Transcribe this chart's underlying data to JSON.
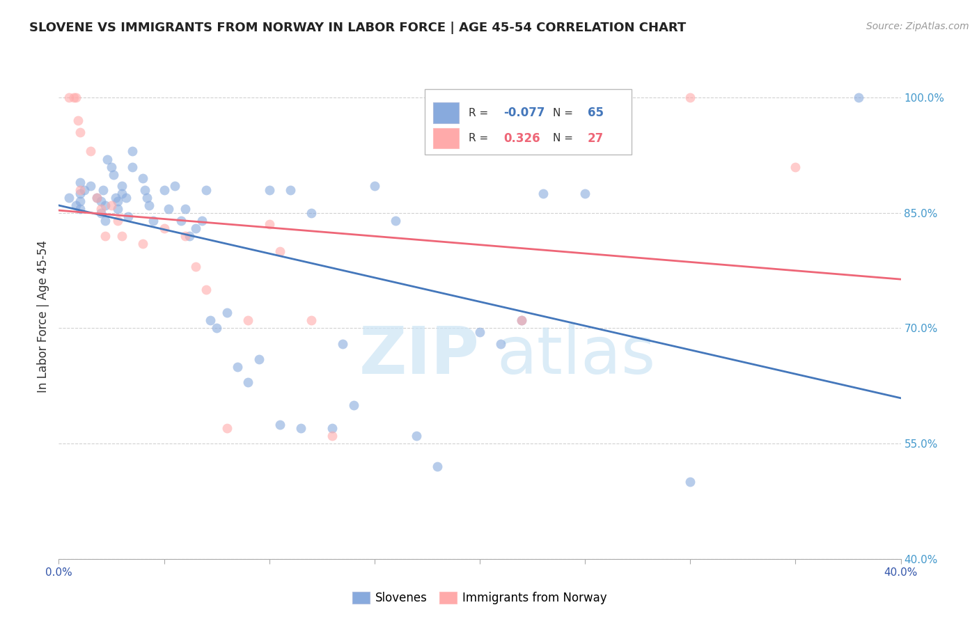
{
  "title": "SLOVENE VS IMMIGRANTS FROM NORWAY IN LABOR FORCE | AGE 45-54 CORRELATION CHART",
  "source": "Source: ZipAtlas.com",
  "ylabel": "In Labor Force | Age 45-54",
  "xlim": [
    0.0,
    0.4
  ],
  "ylim": [
    0.4,
    1.03
  ],
  "yticks": [
    0.4,
    0.55,
    0.7,
    0.85,
    1.0
  ],
  "ytick_labels": [
    "40.0%",
    "55.0%",
    "70.0%",
    "85.0%",
    "100.0%"
  ],
  "xtick_positions": [
    0.0,
    0.05,
    0.1,
    0.15,
    0.2,
    0.25,
    0.3,
    0.35,
    0.4
  ],
  "xtick_labels": [
    "0.0%",
    "",
    "",
    "",
    "",
    "",
    "",
    "",
    "40.0%"
  ],
  "background_color": "#ffffff",
  "grid_color": "#cccccc",
  "blue_color": "#88aadd",
  "pink_color": "#ffaaaa",
  "blue_line_color": "#4477bb",
  "pink_line_color": "#ee6677",
  "legend_R_blue": "-0.077",
  "legend_N_blue": "65",
  "legend_R_pink": "0.326",
  "legend_N_pink": "27",
  "blue_points_x": [
    0.005,
    0.008,
    0.01,
    0.01,
    0.01,
    0.01,
    0.012,
    0.015,
    0.018,
    0.02,
    0.02,
    0.021,
    0.022,
    0.022,
    0.023,
    0.025,
    0.026,
    0.027,
    0.028,
    0.028,
    0.03,
    0.03,
    0.032,
    0.033,
    0.035,
    0.035,
    0.04,
    0.041,
    0.042,
    0.043,
    0.045,
    0.05,
    0.052,
    0.055,
    0.058,
    0.06,
    0.062,
    0.065,
    0.068,
    0.07,
    0.072,
    0.075,
    0.08,
    0.085,
    0.09,
    0.095,
    0.1,
    0.105,
    0.11,
    0.115,
    0.12,
    0.13,
    0.135,
    0.14,
    0.15,
    0.16,
    0.17,
    0.18,
    0.2,
    0.21,
    0.22,
    0.23,
    0.25,
    0.3,
    0.38
  ],
  "blue_points_y": [
    0.87,
    0.86,
    0.855,
    0.875,
    0.89,
    0.865,
    0.88,
    0.885,
    0.87,
    0.865,
    0.85,
    0.88,
    0.84,
    0.86,
    0.92,
    0.91,
    0.9,
    0.87,
    0.865,
    0.855,
    0.875,
    0.885,
    0.87,
    0.845,
    0.91,
    0.93,
    0.895,
    0.88,
    0.87,
    0.86,
    0.84,
    0.88,
    0.855,
    0.885,
    0.84,
    0.855,
    0.82,
    0.83,
    0.84,
    0.88,
    0.71,
    0.7,
    0.72,
    0.65,
    0.63,
    0.66,
    0.88,
    0.575,
    0.88,
    0.57,
    0.85,
    0.57,
    0.68,
    0.6,
    0.885,
    0.84,
    0.56,
    0.52,
    0.695,
    0.68,
    0.71,
    0.875,
    0.875,
    0.5,
    1.0
  ],
  "pink_points_x": [
    0.005,
    0.007,
    0.008,
    0.009,
    0.01,
    0.01,
    0.015,
    0.018,
    0.02,
    0.022,
    0.025,
    0.028,
    0.03,
    0.04,
    0.05,
    0.06,
    0.065,
    0.07,
    0.08,
    0.09,
    0.1,
    0.105,
    0.12,
    0.13,
    0.22,
    0.3,
    0.35
  ],
  "pink_points_y": [
    1.0,
    1.0,
    1.0,
    0.97,
    0.955,
    0.88,
    0.93,
    0.87,
    0.855,
    0.82,
    0.86,
    0.84,
    0.82,
    0.81,
    0.83,
    0.82,
    0.78,
    0.75,
    0.57,
    0.71,
    0.835,
    0.8,
    0.71,
    0.56,
    0.71,
    1.0,
    0.91
  ]
}
